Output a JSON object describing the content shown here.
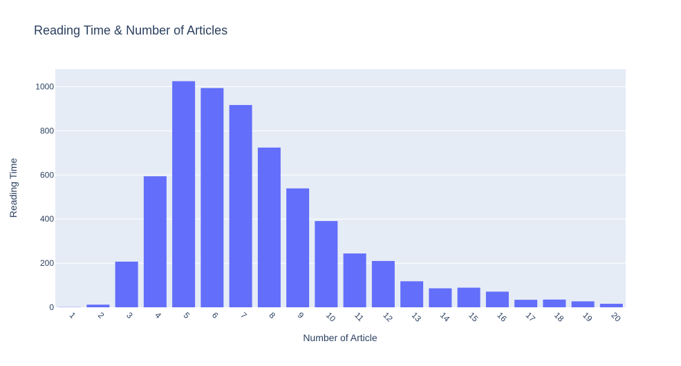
{
  "chart_data": {
    "type": "bar",
    "title": "Reading Time & Number of Articles",
    "xlabel": "Number of Article",
    "ylabel": "Reading Time",
    "categories": [
      "1",
      "2",
      "3",
      "4",
      "5",
      "6",
      "7",
      "8",
      "9",
      "10",
      "11",
      "12",
      "13",
      "14",
      "15",
      "16",
      "17",
      "18",
      "19",
      "20"
    ],
    "values": [
      1,
      12,
      207,
      594,
      1025,
      994,
      917,
      724,
      539,
      391,
      244,
      210,
      118,
      86,
      89,
      71,
      34,
      35,
      27,
      16
    ],
    "ylim": [
      0,
      1080
    ],
    "yticks": [
      0,
      200,
      400,
      600,
      800,
      1000
    ],
    "grid": true,
    "colors": {
      "bar": "#636efa",
      "plot_bg": "#e5ecf6",
      "grid": "#ffffff",
      "text": "#2a3f5f"
    }
  }
}
